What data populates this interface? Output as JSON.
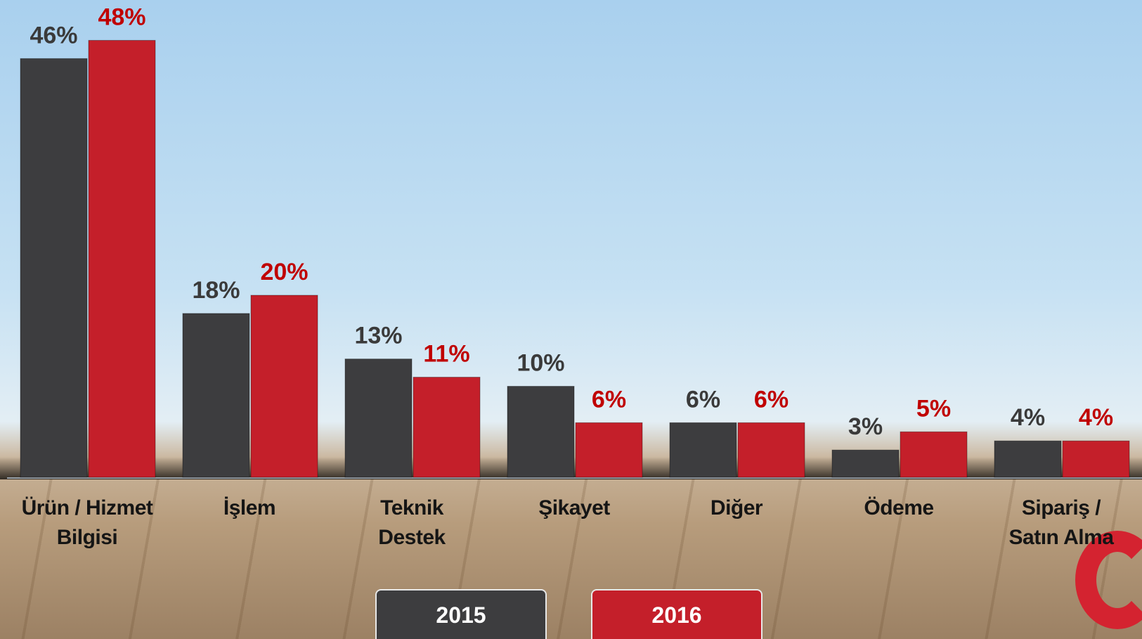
{
  "chart_data": {
    "type": "bar",
    "categories": [
      "Ürün / Hizmet\nBilgisi",
      "İşlem",
      "Teknik\nDestek",
      "Şikayet",
      "Diğer",
      "Ödeme",
      "Sipariş /\nSatın Alma"
    ],
    "series": [
      {
        "name": "2015",
        "color": "#3d3d3f",
        "values": [
          46,
          18,
          13,
          10,
          6,
          3,
          4
        ],
        "value_labels": [
          "46%",
          "18%",
          "13%",
          "10%",
          "6%",
          "3%",
          "4%"
        ]
      },
      {
        "name": "2016",
        "color": "#c41f2a",
        "values": [
          48,
          20,
          11,
          6,
          6,
          5,
          4
        ],
        "value_labels": [
          "48%",
          "20%",
          "11%",
          "6%",
          "6%",
          "5%",
          "4%"
        ]
      }
    ]
  }
}
